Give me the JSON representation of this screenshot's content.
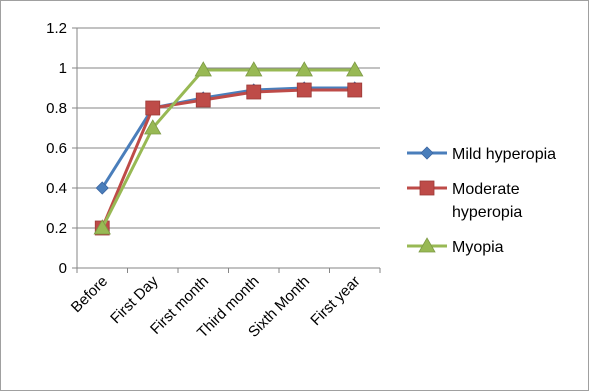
{
  "chart_data": {
    "type": "line",
    "title": "",
    "xlabel": "",
    "ylabel": "",
    "categories": [
      "Before",
      "First Day",
      "First month",
      "Third month",
      "Sixth Month",
      "First year"
    ],
    "ylim": [
      0,
      1.2
    ],
    "yticks": [
      "0",
      "0.2",
      "0.4",
      "0.6",
      "0.8",
      "1",
      "1.2"
    ],
    "ytick_values": [
      0,
      0.2,
      0.4,
      0.6,
      0.8,
      1,
      1.2
    ],
    "grid": "horizontal",
    "legend_position": "right",
    "series": [
      {
        "name": "Mild hyperopia",
        "legend_lines": [
          "Mild hyperopia"
        ],
        "color": "#4a7ebb",
        "marker": "diamond",
        "values": [
          0.4,
          0.8,
          0.85,
          0.89,
          0.9,
          0.9
        ]
      },
      {
        "name": "Moderate hyperopia",
        "legend_lines": [
          "Moderate",
          "hyperopia"
        ],
        "color": "#be4b48",
        "marker": "square",
        "values": [
          0.2,
          0.8,
          0.84,
          0.88,
          0.89,
          0.89
        ]
      },
      {
        "name": "Myopia",
        "legend_lines": [
          "Myopia"
        ],
        "color": "#98b954",
        "marker": "triangle",
        "values": [
          0.2,
          0.7,
          0.99,
          0.99,
          0.99,
          0.99
        ]
      }
    ]
  }
}
